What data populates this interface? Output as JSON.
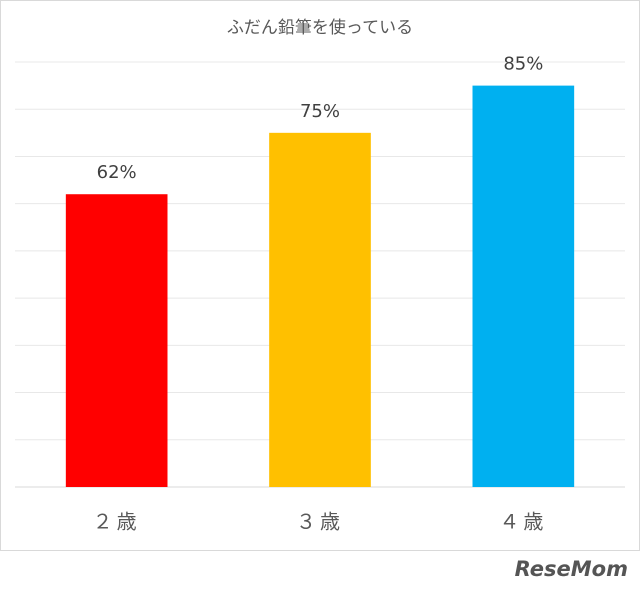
{
  "chart_data": {
    "type": "bar",
    "title": "ふだん鉛筆を使っている",
    "categories": [
      "２歳",
      "３歳",
      "４歳"
    ],
    "values": [
      62,
      75,
      85
    ],
    "value_labels": [
      "62%",
      "75%",
      "85%"
    ],
    "colors": [
      "#ff0000",
      "#ffc000",
      "#00b0f0"
    ],
    "ylim": [
      0,
      90
    ],
    "yticks": [
      0,
      10,
      20,
      30,
      40,
      50,
      60,
      70,
      80,
      90
    ],
    "grid": true
  },
  "watermark": "ReseMom"
}
